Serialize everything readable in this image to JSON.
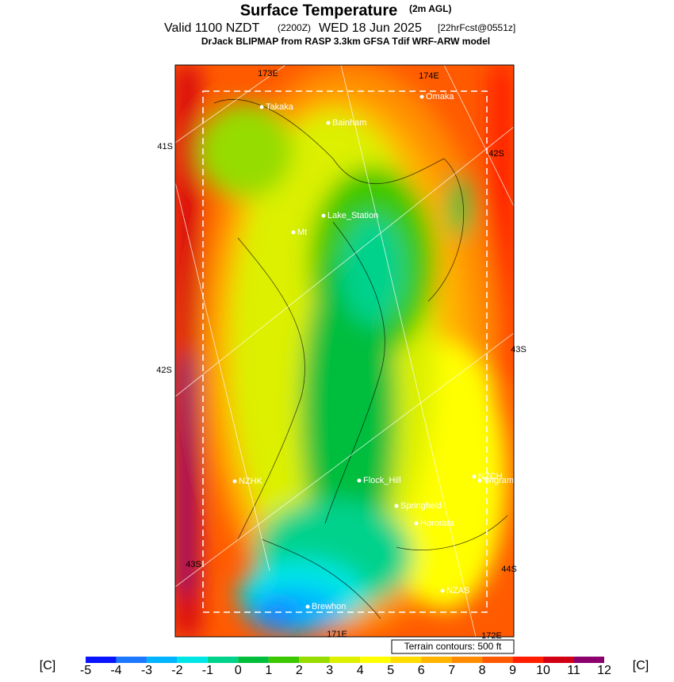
{
  "header": {
    "title": "Surface Temperature",
    "title_note": "(2m AGL)",
    "valid": "Valid 1100 NZDT",
    "valid_utc": "(2200Z)",
    "date": "WED 18 Jun 2025",
    "forecast": "[22hrFcst@0551z]",
    "model": "DrJack BLIPMAP from RASP 3.3km GFSA Tdif WRF-ARW model"
  },
  "places": [
    "Takaka",
    "Bainham",
    "Omaka",
    "Lake_Station",
    "Mt",
    "NZHK",
    "Flock_Hill",
    "NZCH",
    "Wigram",
    "Springfield",
    "Hororata",
    "NZAS",
    "Brewhon"
  ],
  "graticule": [
    "173E",
    "174E",
    "41S",
    "42S",
    "43S",
    "42S",
    "43S",
    "44S",
    "171E",
    "172E"
  ],
  "terrain_note": "Terrain contours: 500 ft",
  "colorbar": {
    "unit": "[C]",
    "ticks": [
      -5,
      -4,
      -3,
      -2,
      -1,
      0,
      1,
      2,
      3,
      4,
      5,
      6,
      7,
      8,
      9,
      10,
      11,
      12
    ],
    "colors": [
      "#0a14ff",
      "#1e78ff",
      "#00b4ff",
      "#00e6e6",
      "#00d28c",
      "#00be3c",
      "#3cc800",
      "#96dc00",
      "#dcf000",
      "#ffff00",
      "#ffdc00",
      "#ffb400",
      "#ff8c00",
      "#ff5a00",
      "#ff1e00",
      "#d20014",
      "#8c006e"
    ]
  }
}
